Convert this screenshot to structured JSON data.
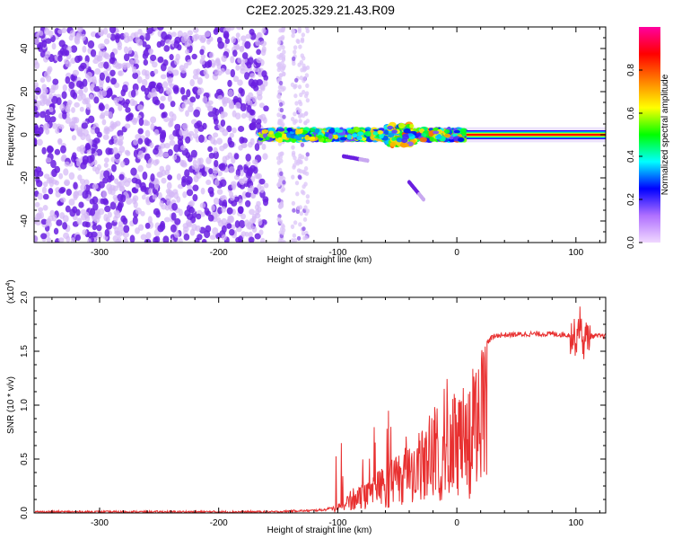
{
  "title": "C2E2.2025.329.21.43.R09",
  "colors": {
    "background": "#ffffff",
    "snr_line": "#e83030",
    "spec_low": "#c8a8f0",
    "spec_mid": "#6a1ee0",
    "spec_high": "#ff0000"
  },
  "colorbar": {
    "label": "Normalized spectral amplitude",
    "range": [
      0,
      1
    ],
    "ticks": [
      0.0,
      0.2,
      0.4,
      0.6,
      0.8
    ],
    "tick_labels": [
      "0.0",
      "0.2",
      "0.4",
      "0.6",
      "0.8"
    ],
    "stops": [
      "#f0d8ff",
      "#b070ff",
      "#0000ff",
      "#00ffff",
      "#00ff00",
      "#ffff00",
      "#ff8000",
      "#ff0000",
      "#ff00a0"
    ]
  },
  "chart_data": [
    {
      "type": "heatmap",
      "name": "spectrogram",
      "title": "C2E2.2025.329.21.43.R09",
      "xlabel": "Height of straight line (km)",
      "ylabel": "Frequency (Hz)",
      "xlim": [
        -355,
        125
      ],
      "ylim": [
        -50,
        50
      ],
      "x_ticks": [
        -300,
        -200,
        -100,
        0,
        100
      ],
      "x_tick_labels": [
        "-300",
        "-200",
        "-100",
        "0",
        "100"
      ],
      "y_ticks": [
        -40,
        -20,
        0,
        20,
        40
      ],
      "y_tick_labels": [
        "-40",
        "-20",
        "0",
        "20",
        "40"
      ],
      "noise_region_x": [
        -355,
        -160
      ],
      "sparse_noise_bands_x": [
        [
          -150,
          -145
        ],
        [
          -138,
          -125
        ]
      ],
      "signal_band": {
        "x_start": -165,
        "x_end": 125,
        "center_freq": 0,
        "half_width": 2.5
      },
      "strong_line": {
        "x_start": 8,
        "x_end": 125,
        "freq": 0
      },
      "chirp_features": [
        {
          "x_start": -40,
          "x_end": -28,
          "freq_start": -22,
          "freq_end": -30
        },
        {
          "x_start": -95,
          "x_end": -75,
          "freq_start": -10,
          "freq_end": -12
        }
      ]
    },
    {
      "type": "line",
      "name": "snr",
      "xlabel": "Height of straight line (km)",
      "ylabel": "SNR (10 * v/v)",
      "y_exponent_label": "(x10",
      "y_exponent": "4",
      "xlim": [
        -355,
        125
      ],
      "ylim": [
        0,
        2.0
      ],
      "x_ticks": [
        -300,
        -200,
        -100,
        0,
        100
      ],
      "x_tick_labels": [
        "-300",
        "-200",
        "-100",
        "0",
        "100"
      ],
      "y_ticks": [
        0.0,
        0.5,
        1.0,
        1.5,
        2.0
      ],
      "y_tick_labels": [
        "0.0",
        "0.5",
        "1.0",
        "1.5",
        "2.0"
      ],
      "series": [
        {
          "name": "SNR",
          "x": [
            -355,
            -150,
            -135,
            -125,
            -110,
            -100,
            -90,
            -80,
            -70,
            -60,
            -50,
            -40,
            -30,
            -20,
            -12,
            -5,
            0,
            5,
            10,
            15,
            20,
            25,
            30,
            35,
            40,
            60,
            80,
            95,
            100,
            103,
            106,
            110,
            125
          ],
          "values": [
            0.01,
            0.01,
            0.02,
            0.02,
            0.03,
            0.08,
            0.2,
            0.3,
            0.35,
            0.45,
            0.55,
            0.65,
            0.8,
            0.95,
            1.05,
            1.1,
            1.12,
            1.18,
            1.3,
            1.4,
            1.5,
            1.58,
            1.63,
            1.65,
            1.65,
            1.66,
            1.66,
            1.65,
            1.62,
            1.78,
            1.58,
            1.64,
            1.64
          ]
        }
      ]
    }
  ]
}
